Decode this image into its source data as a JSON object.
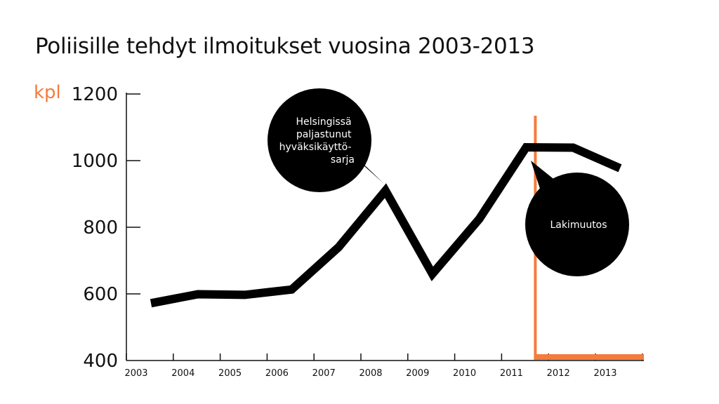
{
  "chart_data": {
    "type": "line",
    "title": "Poliisille tehdyt ilmoitukset vuosina 2003-2013",
    "unit_label": "kpl",
    "ylabel": "",
    "xlabel": "",
    "ylim": [
      400,
      1200
    ],
    "yticks": [
      "400",
      "600",
      "800",
      "1000",
      "1200"
    ],
    "categories": [
      "2003",
      "2004",
      "2005",
      "2006",
      "2007",
      "2008",
      "2009",
      "2010",
      "2011",
      "2012",
      "2013"
    ],
    "x": [
      2003,
      2004,
      2005,
      2006,
      2007,
      2008,
      2009,
      2010,
      2011,
      2012,
      2013
    ],
    "values": [
      572,
      599,
      597,
      613,
      740,
      910,
      660,
      825,
      1040,
      1039,
      977
    ],
    "grid": false,
    "colors": {
      "line": "#000000",
      "accent": "#f47c3c"
    },
    "annotations": [
      {
        "text_lines": [
          "Helsingissä",
          "paljastunut",
          "hyväksikäyttö-",
          "sarja"
        ],
        "target_year": 2008
      },
      {
        "text_lines": [
          "Lakimuutos"
        ],
        "target_year": 2011
      }
    ],
    "marker": {
      "label": "Lakimuutos",
      "x": 2011
    }
  }
}
